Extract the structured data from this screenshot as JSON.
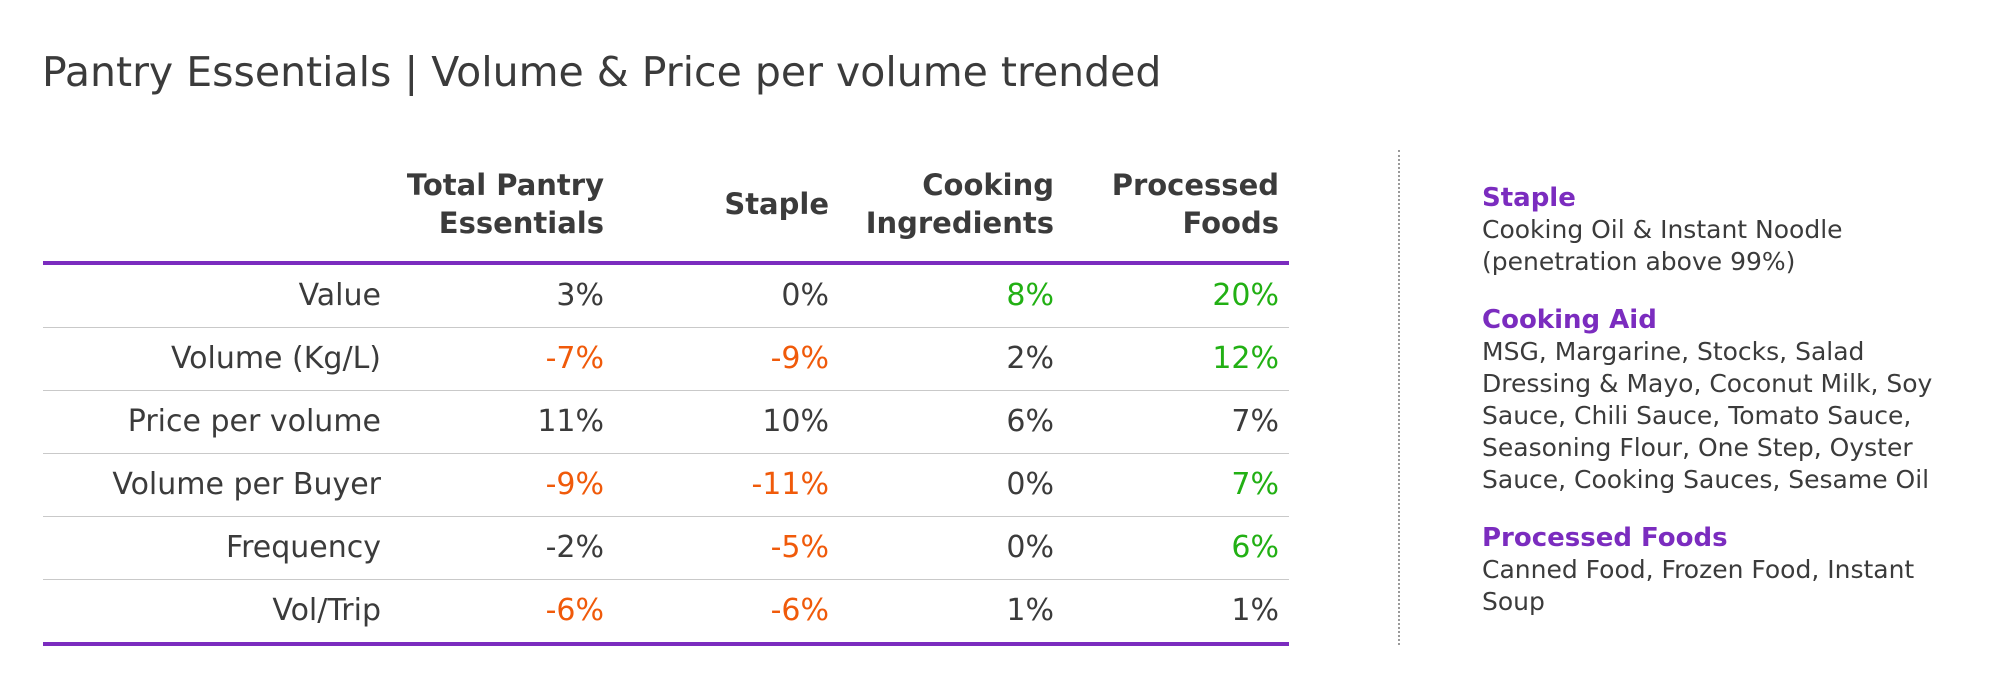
{
  "title": "Pantry Essentials | Volume & Price per volume trended",
  "table": {
    "columns": [
      "Total Pantry\nEssentials",
      "Staple",
      "Cooking\nIngredients",
      "Processed\nFoods"
    ],
    "rows": [
      {
        "label": "Value",
        "values": [
          "3%",
          "0%",
          "8%",
          "20%"
        ]
      },
      {
        "label": "Volume (Kg/L)",
        "values": [
          "-7%",
          "-9%",
          "2%",
          "12%"
        ]
      },
      {
        "label": "Price per volume",
        "values": [
          "11%",
          "10%",
          "6%",
          "7%"
        ]
      },
      {
        "label": "Volume per Buyer",
        "values": [
          "-9%",
          "-11%",
          "0%",
          "7%"
        ]
      },
      {
        "label": "Frequency",
        "values": [
          "-2%",
          "-5%",
          "0%",
          "6%"
        ]
      },
      {
        "label": "Vol/Trip",
        "values": [
          "-6%",
          "-6%",
          "1%",
          "1%"
        ]
      }
    ]
  },
  "legend": [
    {
      "heading": "Staple",
      "text": "Cooking Oil & Instant Noodle\n(penetration above 99%)"
    },
    {
      "heading": "Cooking Aid",
      "text": "MSG, Margarine, Stocks, Salad\nDressing & Mayo, Coconut Milk, Soy\nSauce, Chili Sauce, Tomato Sauce,\nSeasoning Flour, One Step, Oyster\nSauce, Cooking Sauces, Sesame Oil"
    },
    {
      "heading": "Processed Foods",
      "text": "Canned Food, Frozen Food, Instant\nSoup"
    }
  ],
  "colors": {
    "accent": "#7b2cbf",
    "negative": "#f05a0a",
    "positive": "#22b014",
    "text": "#3b3b3b"
  },
  "value_colors": [
    [
      "neu",
      "neu",
      "pos",
      "pos"
    ],
    [
      "neg",
      "neg",
      "neu",
      "pos"
    ],
    [
      "neu",
      "neu",
      "neu",
      "neu"
    ],
    [
      "neg",
      "neg",
      "neu",
      "pos"
    ],
    [
      "neu",
      "neg",
      "neu",
      "pos"
    ],
    [
      "neg",
      "neg",
      "neu",
      "neu"
    ]
  ]
}
